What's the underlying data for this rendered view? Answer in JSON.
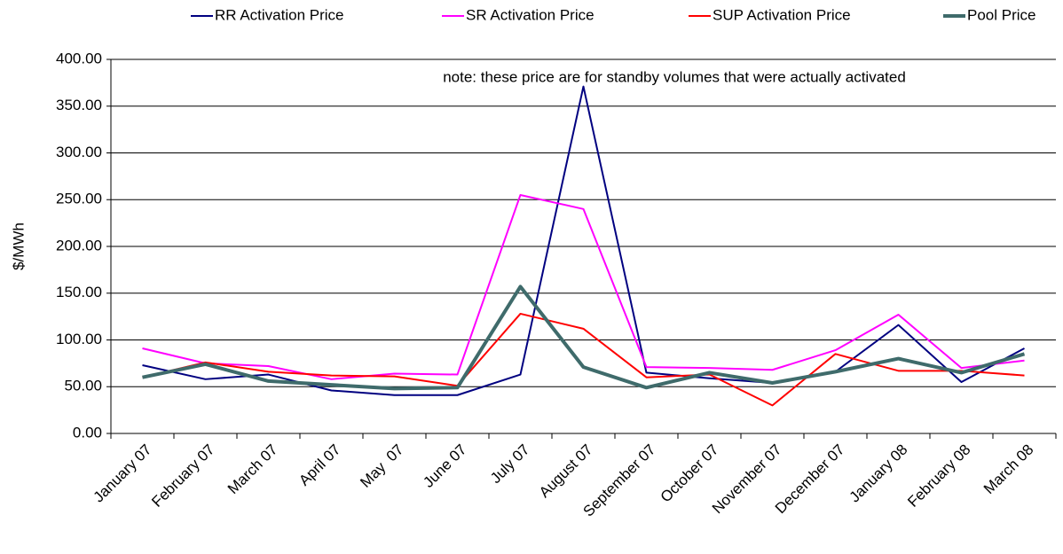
{
  "chart_data": {
    "type": "line",
    "note": "note: these price are for standby volumes that were actually activated",
    "y_label": "$/MWh",
    "categories": [
      "January 07",
      "February 07",
      "March 07",
      "April 07",
      "May  07",
      "June 07",
      "July 07",
      "August 07",
      "September 07",
      "October 07",
      "November 07",
      "December 07",
      "January 08",
      "February 08",
      "March 08"
    ],
    "series": [
      {
        "name": "RR Activation Price",
        "color": "#000080",
        "width": 2,
        "values": [
          73,
          58,
          63,
          46,
          41,
          41,
          63,
          371,
          65,
          59,
          54,
          66,
          116,
          55,
          91
        ]
      },
      {
        "name": "SR Activation Price",
        "color": "#ff00ff",
        "width": 2,
        "values": [
          91,
          75,
          72,
          58,
          64,
          63,
          255,
          240,
          71,
          70,
          68,
          89,
          127,
          70,
          78
        ]
      },
      {
        "name": "SUP Activation Price",
        "color": "#ff0000",
        "width": 2,
        "values": [
          60,
          76,
          66,
          62,
          61,
          51,
          128,
          112,
          60,
          63,
          30,
          85,
          67,
          67,
          62
        ]
      },
      {
        "name": "Pool Price",
        "color": "#3f6b6b",
        "width": 4,
        "values": [
          60,
          74,
          56,
          52,
          48,
          49,
          157,
          71,
          49,
          65,
          54,
          66,
          80,
          65,
          85
        ]
      }
    ],
    "ylim": [
      0,
      400
    ],
    "yticks": [
      {
        "value": 0,
        "label": "0.00"
      },
      {
        "value": 50,
        "label": "50.00"
      },
      {
        "value": 100,
        "label": "100.00"
      },
      {
        "value": 150,
        "label": "150.00"
      },
      {
        "value": 200,
        "label": "200.00"
      },
      {
        "value": 250,
        "label": "250.00"
      },
      {
        "value": 300,
        "label": "300.00"
      },
      {
        "value": 350,
        "label": "350.00"
      },
      {
        "value": 400,
        "label": "400.00"
      }
    ],
    "grid": true
  }
}
